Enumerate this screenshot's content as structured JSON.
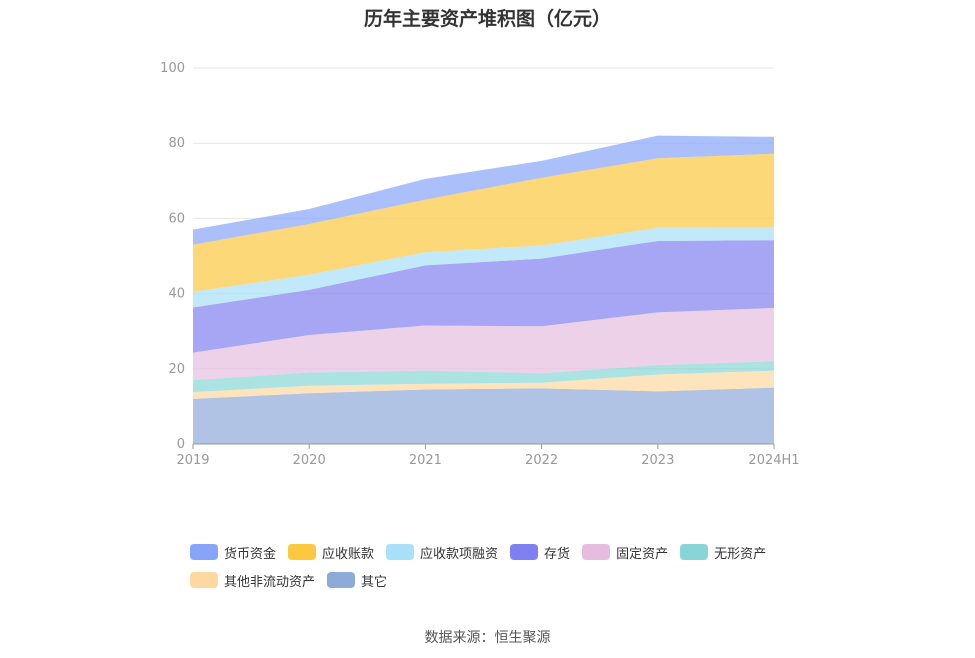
{
  "chart_data": {
    "type": "area",
    "stacked": true,
    "title": "历年主要资产堆积图（亿元）",
    "categories": [
      "2019",
      "2020",
      "2021",
      "2022",
      "2023",
      "2024H1"
    ],
    "ylim": [
      0,
      100
    ],
    "yticks": [
      0,
      20,
      40,
      60,
      80,
      100
    ],
    "grid": true,
    "legend_position": "bottom",
    "source": "数据来源：恒生聚源",
    "series": [
      {
        "name": "其它",
        "color": "#8eaad8",
        "values": [
          12.0,
          13.5,
          14.5,
          14.8,
          14.0,
          15.0
        ]
      },
      {
        "name": "其他非流动资产",
        "color": "#fdd8a0",
        "values": [
          1.8,
          2.0,
          1.5,
          1.5,
          4.5,
          4.5
        ]
      },
      {
        "name": "无形资产",
        "color": "#88d5d6",
        "values": [
          3.2,
          3.5,
          3.5,
          2.5,
          2.5,
          2.5
        ]
      },
      {
        "name": "固定资产",
        "color": "#e6bde0",
        "values": [
          7.3,
          10.0,
          12.0,
          12.5,
          14.0,
          14.2
        ]
      },
      {
        "name": "存货",
        "color": "#8080f0",
        "values": [
          12.0,
          12.0,
          16.0,
          18.0,
          19.0,
          18.0
        ]
      },
      {
        "name": "应收款项融资",
        "color": "#a8e0f8",
        "values": [
          4.2,
          4.0,
          3.5,
          3.5,
          3.5,
          3.5
        ]
      },
      {
        "name": "应收账款",
        "color": "#fcc840",
        "values": [
          12.5,
          13.5,
          14.0,
          18.0,
          18.5,
          19.5
        ]
      },
      {
        "name": "货币资金",
        "color": "#88a4f8",
        "values": [
          4.0,
          4.0,
          5.5,
          4.5,
          6.0,
          4.5
        ]
      }
    ],
    "legend_order": [
      "货币资金",
      "应收账款",
      "应收款项融资",
      "存货",
      "固定资产",
      "无形资产",
      "其他非流动资产",
      "其它"
    ]
  }
}
